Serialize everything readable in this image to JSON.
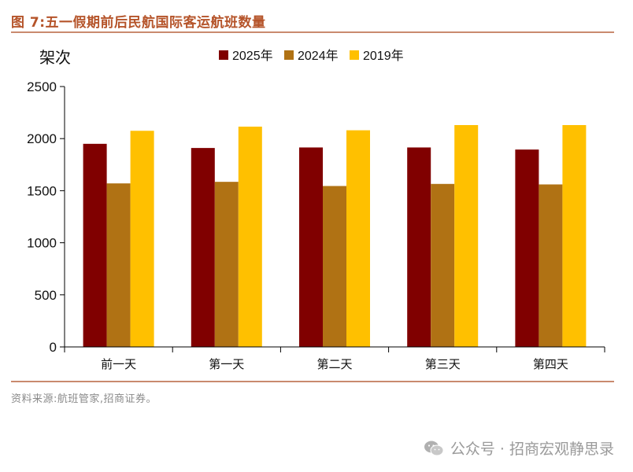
{
  "figure_title": "图 7:五一假期前后民航国际客运航班数量",
  "source": "资料来源:航班管家,招商证券。",
  "watermark": {
    "text": "公众号 · 招商宏观静思录",
    "icon": "wechat-icon"
  },
  "colors": {
    "title": "#b5542a",
    "rule": "#c98a6e",
    "series": [
      "#800000",
      "#b07214",
      "#ffc000"
    ]
  },
  "chart_data": {
    "type": "bar",
    "title": "",
    "ylabel": "架次",
    "xlabel": "",
    "categories": [
      "前一天",
      "第一天",
      "第二天",
      "第三天",
      "第四天"
    ],
    "series": [
      {
        "name": "2025年",
        "values": [
          1950,
          1910,
          1915,
          1915,
          1895
        ]
      },
      {
        "name": "2024年",
        "values": [
          1570,
          1585,
          1545,
          1565,
          1560
        ]
      },
      {
        "name": "2019年",
        "values": [
          2075,
          2115,
          2080,
          2130,
          2130
        ]
      }
    ],
    "ylim": [
      0,
      2500
    ],
    "yticks": [
      0,
      500,
      1000,
      1500,
      2000,
      2500
    ],
    "grid": false,
    "legend_position": "top"
  }
}
